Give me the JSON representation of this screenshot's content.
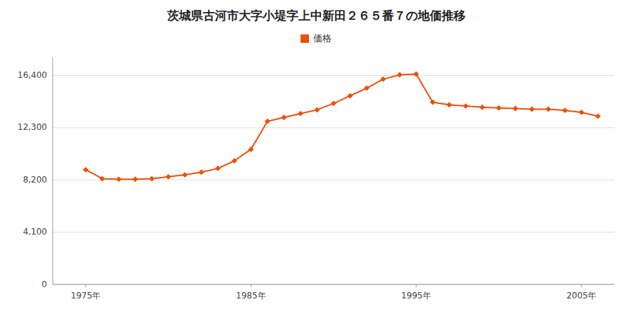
{
  "chart_data": {
    "type": "line",
    "title": "茨城県古河市大字小堤字上中新田２６５番７の地価推移",
    "x": [
      1975,
      1976,
      1977,
      1978,
      1979,
      1980,
      1981,
      1982,
      1983,
      1984,
      1985,
      1986,
      1987,
      1988,
      1989,
      1990,
      1991,
      1992,
      1993,
      1994,
      1995,
      1996,
      1997,
      1998,
      1999,
      2000,
      2001,
      2002,
      2003,
      2004,
      2005,
      2006
    ],
    "series": [
      {
        "name": "価格",
        "color": "#E8520A",
        "marker": "diamond",
        "values": [
          9000,
          8300,
          8250,
          8250,
          8300,
          8450,
          8600,
          8800,
          9100,
          9700,
          10600,
          12800,
          13100,
          13400,
          13700,
          14200,
          14800,
          15400,
          16100,
          16450,
          16500,
          14300,
          14100,
          14000,
          13900,
          13850,
          13800,
          13750,
          13750,
          13650,
          13500,
          13200
        ]
      }
    ],
    "xlim": [
      1973,
      2007
    ],
    "xticks": [
      {
        "value": 1975,
        "label": "1975年"
      },
      {
        "value": 1985,
        "label": "1985年"
      },
      {
        "value": 1995,
        "label": "1995年"
      },
      {
        "value": 2005,
        "label": "2005年"
      }
    ],
    "ylim": [
      0,
      17800
    ],
    "yticks": [
      0,
      {
        "value": 4100,
        "label": "4,100"
      },
      {
        "value": 8200,
        "label": "8,200"
      },
      {
        "value": 12300,
        "label": "12,300"
      },
      {
        "value": 16400,
        "label": "16,400"
      }
    ],
    "grid": "y",
    "legend": "top"
  }
}
